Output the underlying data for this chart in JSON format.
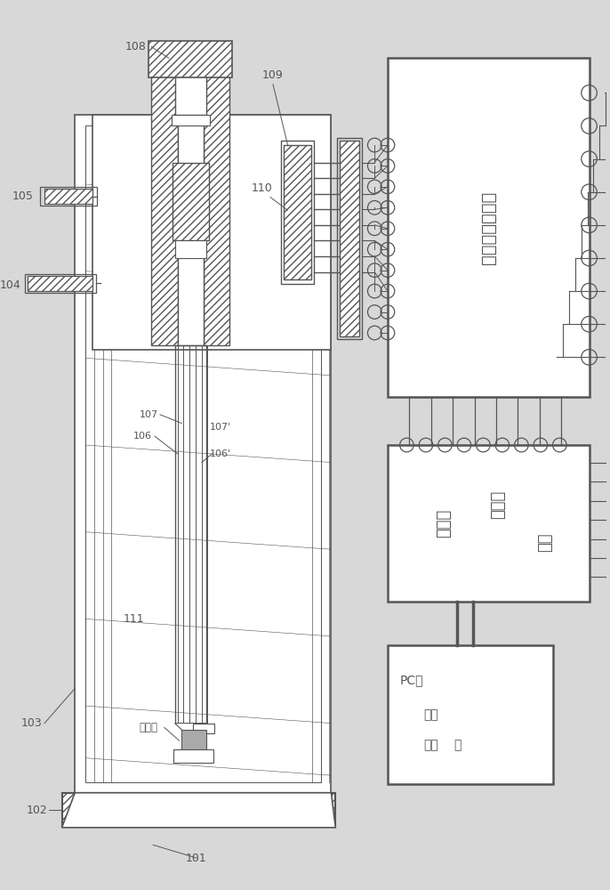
{
  "bg_color": "#d8d8d8",
  "line_color": "#555555",
  "fig_width": 6.86,
  "fig_height": 10.0,
  "dpi": 100,
  "board_label": "采集控制电路板",
  "dac_line1": "高精度",
  "dac_line2": "数据采",
  "dac_line3": "集卡",
  "pc_line1": "PC端",
  "pc_line2": "上位",
  "pc_line3": "机软",
  "pc_line4": "件",
  "sample_label": "样品台"
}
